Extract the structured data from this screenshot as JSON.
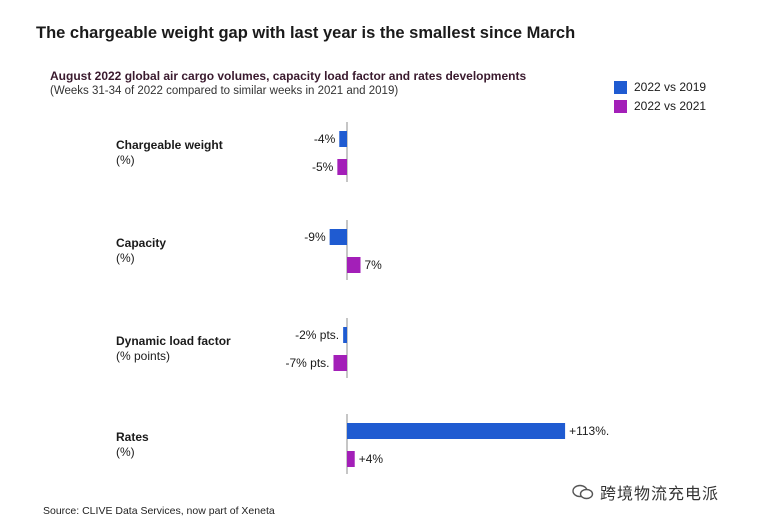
{
  "header": {
    "title": "The chargeable weight gap with last year is the smallest since March"
  },
  "chart_data": {
    "type": "bar",
    "orientation": "horizontal",
    "title": "August 2022 global air cargo volumes, capacity load factor and rates developments",
    "subtitle": "(Weeks 31-34 of 2022 compared to similar weeks in 2021 and 2019)",
    "categories": [
      {
        "name": "Chargeable weight",
        "unit": "(%)"
      },
      {
        "name": "Capacity",
        "unit": "(%)"
      },
      {
        "name": "Dynamic load factor",
        "unit": "(% points)"
      },
      {
        "name": "Rates",
        "unit": "(%)"
      }
    ],
    "series": [
      {
        "name": "2022 vs 2019",
        "color": "#1f5bd1",
        "values": [
          -4,
          -9,
          -2,
          113
        ],
        "labels": [
          "-4%",
          "-9%",
          "-2% pts.",
          "+113%."
        ]
      },
      {
        "name": "2022 vs 2021",
        "color": "#a31fb8",
        "values": [
          -5,
          7,
          -7,
          4
        ],
        "labels": [
          "-5%",
          "7%",
          "-7% pts.",
          "+4%"
        ]
      }
    ],
    "legend_position": "top-right",
    "grid": false
  },
  "footer": {
    "source": "Source: CLIVE Data Services, now part of Xeneta",
    "watermark": "跨境物流充电派"
  }
}
